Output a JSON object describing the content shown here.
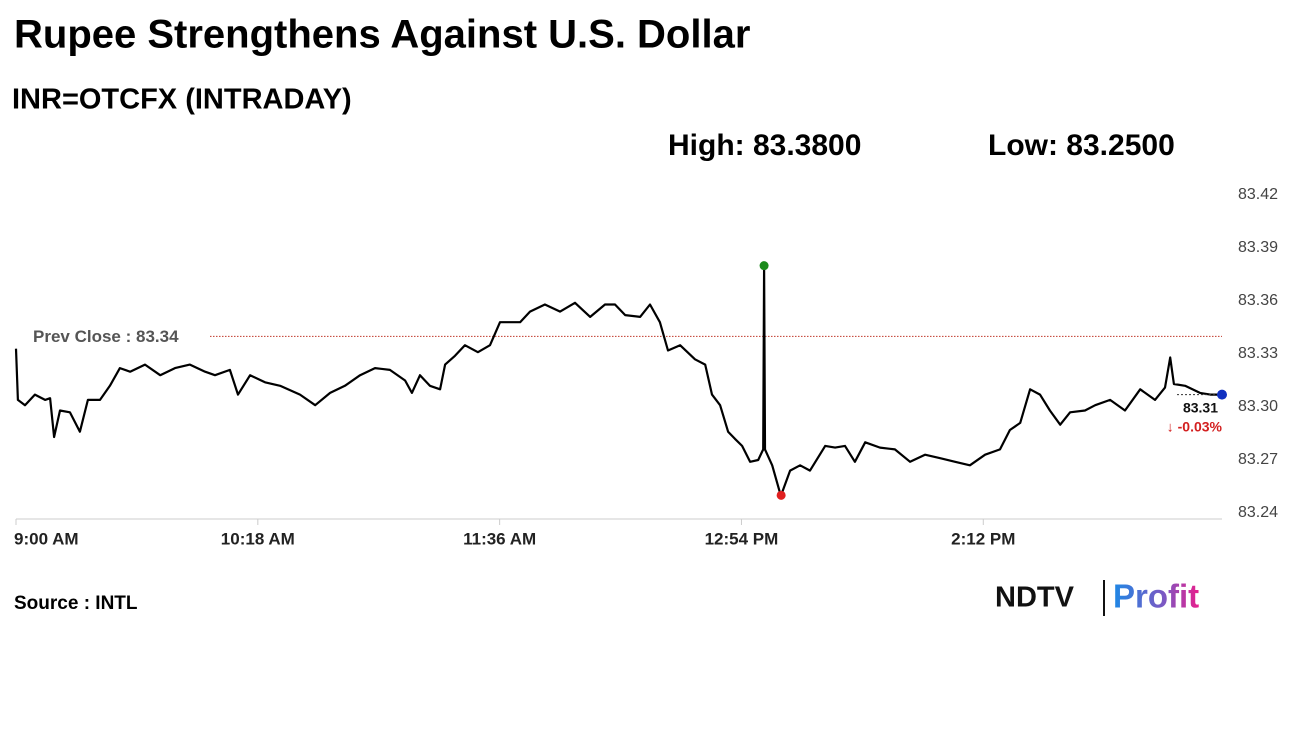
{
  "chart_data": {
    "type": "line",
    "title": "Rupee Strengthens Against U.S. Dollar",
    "subtitle": "INR=OTCFX (INTRADAY)",
    "high": {
      "value": 83.38,
      "label": "High: 83.3800"
    },
    "low": {
      "value": 83.25,
      "label": "Low: 83.2500"
    },
    "prev_close": {
      "value": 83.34,
      "label": "Prev Close : 83.34"
    },
    "last_label": "83.31",
    "change_label": "↓ -0.03%",
    "source": "Source : INTL",
    "logo": {
      "brand": "NDTV",
      "product": "Profit"
    },
    "color": "#000000",
    "x": [
      540,
      540.6,
      542.9,
      546.1,
      549.4,
      551,
      552.3,
      554.2,
      557.4,
      560.6,
      563.2,
      567.1,
      570.3,
      573.5,
      576.8,
      581.6,
      586.5,
      591.3,
      596.1,
      601,
      604.2,
      609,
      611.6,
      615.5,
      620.3,
      625.2,
      631.6,
      636.5,
      641.3,
      646.1,
      651,
      655.8,
      660.6,
      665.5,
      667.7,
      670.3,
      673.5,
      676.8,
      678.4,
      681.6,
      684.8,
      689,
      692.9,
      696.1,
      702.6,
      705.8,
      710.6,
      715.5,
      720.3,
      725.2,
      730,
      733.2,
      736.5,
      741.3,
      744.5,
      747.7,
      750.3,
      754.2,
      759,
      762.3,
      764.5,
      767.1,
      769.7,
      771.9,
      774.2,
      776.8,
      779.4,
      781,
      781.3,
      781.6,
      783.9,
      786.5,
      786.8,
      789.7,
      792.9,
      796.1,
      801,
      804.2,
      807.4,
      810.6,
      813.9,
      818.7,
      823.5,
      828.4,
      833.2,
      838.1,
      842.9,
      847.7,
      852.6,
      857.4,
      860.6,
      863.9,
      867.1,
      870.3,
      873.5,
      876.8,
      880,
      884.8,
      888.1,
      892.9,
      897.7,
      902.6,
      907.4,
      910.6,
      912.3,
      913.5,
      917.1,
      921.9,
      925.2,
      929
    ],
    "values": [
      83.333,
      83.304,
      83.301,
      83.307,
      83.304,
      83.305,
      83.283,
      83.298,
      83.297,
      83.286,
      83.304,
      83.304,
      83.312,
      83.322,
      83.32,
      83.324,
      83.318,
      83.322,
      83.324,
      83.32,
      83.318,
      83.321,
      83.307,
      83.318,
      83.314,
      83.312,
      83.307,
      83.301,
      83.308,
      83.312,
      83.318,
      83.322,
      83.321,
      83.315,
      83.308,
      83.318,
      83.312,
      83.31,
      83.324,
      83.329,
      83.335,
      83.331,
      83.335,
      83.348,
      83.348,
      83.354,
      83.358,
      83.354,
      83.359,
      83.351,
      83.358,
      83.358,
      83.352,
      83.351,
      83.358,
      83.348,
      83.332,
      83.335,
      83.327,
      83.324,
      83.307,
      83.301,
      83.286,
      83.282,
      83.278,
      83.269,
      83.27,
      83.276,
      83.38,
      83.276,
      83.267,
      83.251,
      83.25,
      83.264,
      83.267,
      83.264,
      83.278,
      83.277,
      83.278,
      83.269,
      83.28,
      83.277,
      83.276,
      83.269,
      83.273,
      83.271,
      83.269,
      83.267,
      83.273,
      83.276,
      83.287,
      83.291,
      83.31,
      83.307,
      83.298,
      83.29,
      83.297,
      83.298,
      83.301,
      83.304,
      83.298,
      83.31,
      83.304,
      83.311,
      83.328,
      83.313,
      83.312,
      83.308,
      83.307,
      83.307
    ],
    "xlim": [
      540,
      929
    ],
    "xticks": [
      {
        "value": 540,
        "label": "9:00 AM"
      },
      {
        "value": 618,
        "label": "10:18 AM"
      },
      {
        "value": 696,
        "label": "11:36 AM"
      },
      {
        "value": 774,
        "label": "12:54 PM"
      },
      {
        "value": 852,
        "label": "2:12 PM"
      }
    ],
    "ylim": [
      83.24,
      83.42
    ],
    "yticks": [
      83.24,
      83.27,
      {
        "value": 83.3,
        "label": "83.30"
      },
      83.33,
      83.36,
      83.39,
      83.42
    ]
  }
}
